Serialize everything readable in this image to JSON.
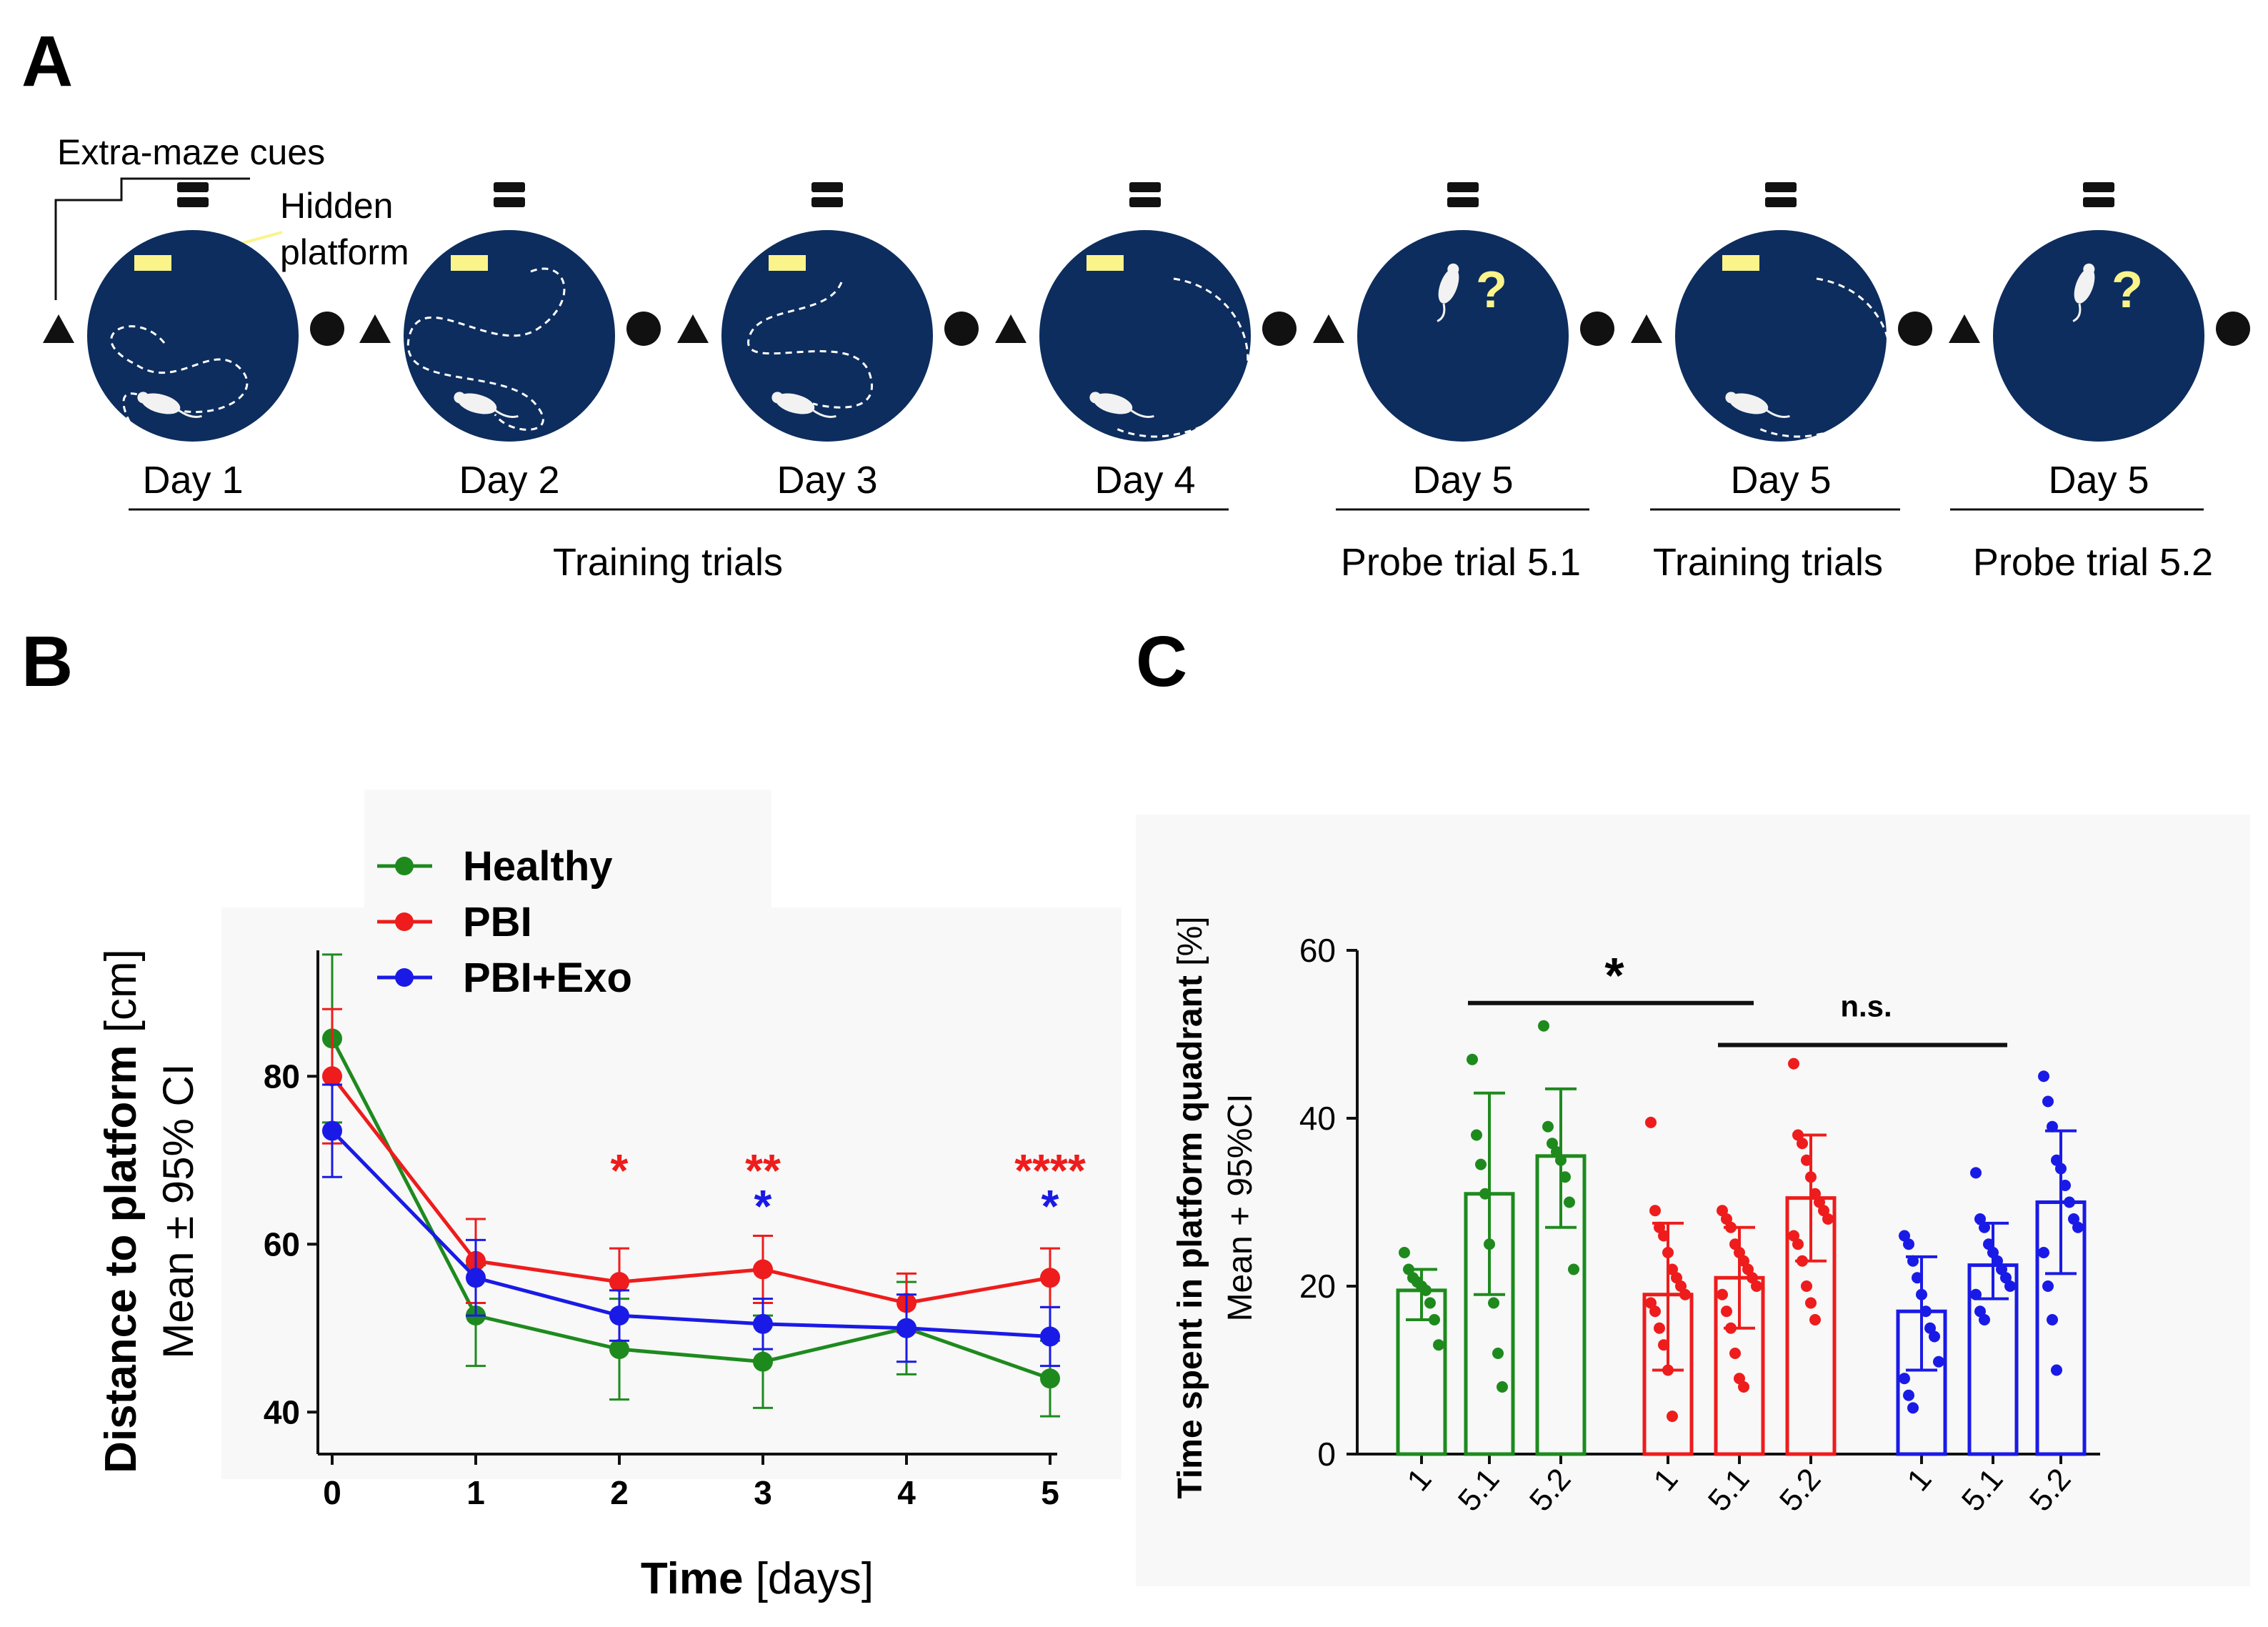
{
  "panel_labels": {
    "a": "A",
    "b": "B",
    "c": "C"
  },
  "colors": {
    "pool": "#0d2d5e",
    "platform": "#fbf48a",
    "healthy": "#1e8a1e",
    "pbi": "#ee1c1c",
    "pbi_exo": "#1a1ae6",
    "black": "#111111"
  },
  "panel_a": {
    "cues_label": "Extra-maze cues",
    "platform_label_1": "Hidden",
    "platform_label_2": "platform",
    "question_mark": "?",
    "days": [
      {
        "label": "Day 1",
        "icon": "pool-icon"
      },
      {
        "label": "Day 2",
        "icon": "pool-icon"
      },
      {
        "label": "Day 3",
        "icon": "pool-icon"
      },
      {
        "label": "Day 4",
        "icon": "pool-icon"
      },
      {
        "label": "Day 5",
        "icon": "pool-probe-icon"
      },
      {
        "label": "Day 5",
        "icon": "pool-icon"
      },
      {
        "label": "Day 5",
        "icon": "pool-probe-icon"
      }
    ],
    "groups": [
      "Training trials",
      "Probe trial 5.1",
      "Training trials",
      "Probe trial 5.2"
    ]
  },
  "chart_data": [
    {
      "type": "line",
      "panel": "B",
      "title": "",
      "xlabel": "Time",
      "xlabel_unit": "[days]",
      "ylabel": "Distance to platform",
      "ylabel_unit": "[cm]",
      "ylabel2": "Mean ± 95% CI",
      "x": [
        0,
        1,
        2,
        3,
        4,
        5
      ],
      "xticks": [
        "0",
        "1",
        "2",
        "3",
        "4",
        "5"
      ],
      "yticks": [
        "40",
        "60",
        "80"
      ],
      "xlim": [
        0,
        5
      ],
      "ylim": [
        35,
        95
      ],
      "legend": [
        "Healthy",
        "PBI",
        "PBI+Exo"
      ],
      "series": [
        {
          "name": "Healthy",
          "color": "#1e8a1e",
          "values": [
            84.5,
            51.5,
            47.5,
            46,
            50,
            44
          ],
          "err": [
            10,
            6,
            6,
            5.5,
            5.5,
            4.5
          ]
        },
        {
          "name": "PBI",
          "color": "#ee1c1c",
          "values": [
            80,
            58,
            55.5,
            57,
            53,
            56
          ],
          "err": [
            8,
            5,
            4,
            4,
            3.5,
            3.5
          ]
        },
        {
          "name": "PBI+Exo",
          "color": "#1a1ae6",
          "values": [
            73.5,
            56,
            51.5,
            50.5,
            50,
            49
          ],
          "err": [
            5.5,
            4.5,
            3,
            3,
            4,
            3.5
          ]
        }
      ],
      "annotations": [
        {
          "x": 2,
          "text": "*",
          "color": "#ee1c1c",
          "row": 1
        },
        {
          "x": 3,
          "text": "**",
          "color": "#ee1c1c",
          "row": 1
        },
        {
          "x": 3,
          "text": "*",
          "color": "#1a1ae6",
          "row": 2
        },
        {
          "x": 5,
          "text": "****",
          "color": "#ee1c1c",
          "row": 1
        },
        {
          "x": 5,
          "text": "*",
          "color": "#1a1ae6",
          "row": 2
        }
      ]
    },
    {
      "type": "bar",
      "panel": "C",
      "title": "",
      "ylabel": "Time spent in platform quadrant",
      "ylabel_unit": "[%]",
      "ylabel2": "Mean + 95%CI",
      "ylim": [
        0,
        60
      ],
      "yticks": [
        "0",
        "20",
        "40",
        "60"
      ],
      "categories": [
        "1",
        "5.1",
        "5.2",
        "1",
        "5.1",
        "5.2",
        "1",
        "5.1",
        "5.2"
      ],
      "groups": [
        "Healthy",
        "PBI",
        "PBI+Exo"
      ],
      "bars": [
        {
          "group": "Healthy",
          "label": "1",
          "value": 19.5,
          "lo": 16,
          "hi": 22,
          "points": [
            24,
            22,
            21,
            20.5,
            20,
            19.5,
            18,
            16,
            13
          ]
        },
        {
          "group": "Healthy",
          "label": "5.1",
          "value": 31,
          "lo": 19,
          "hi": 43,
          "points": [
            47,
            38,
            34.5,
            31,
            25,
            18,
            12,
            8
          ]
        },
        {
          "group": "Healthy",
          "label": "5.2",
          "value": 35.5,
          "lo": 27,
          "hi": 43.5,
          "points": [
            51,
            39,
            37,
            36,
            35,
            33,
            30,
            22
          ]
        },
        {
          "group": "PBI",
          "label": "1",
          "value": 19,
          "lo": 10,
          "hi": 27.5,
          "points": [
            39.5,
            29,
            27,
            26,
            24,
            22,
            21,
            20,
            19,
            18,
            17,
            15,
            13,
            10,
            4.5
          ]
        },
        {
          "group": "PBI",
          "label": "5.1",
          "value": 21,
          "lo": 15,
          "hi": 27,
          "points": [
            29,
            28,
            27,
            25,
            24,
            23,
            22,
            21,
            20,
            19,
            17,
            15,
            12,
            9,
            8
          ]
        },
        {
          "group": "PBI",
          "label": "5.2",
          "value": 30.5,
          "lo": 23,
          "hi": 38,
          "points": [
            46.5,
            38,
            37,
            35,
            33,
            31,
            30,
            29,
            28,
            26,
            25,
            23,
            20,
            18,
            16
          ]
        },
        {
          "group": "PBI+Exo",
          "label": "1",
          "value": 17,
          "lo": 10,
          "hi": 23.5,
          "points": [
            26,
            25,
            23,
            21,
            19,
            17,
            15,
            14,
            11,
            9,
            7,
            5.5
          ]
        },
        {
          "group": "PBI+Exo",
          "label": "5.1",
          "value": 22.5,
          "lo": 18.5,
          "hi": 27.5,
          "points": [
            33.5,
            28,
            27,
            25,
            24,
            23,
            22,
            21,
            20,
            19,
            17,
            16
          ]
        },
        {
          "group": "PBI+Exo",
          "label": "5.2",
          "value": 30,
          "lo": 21.5,
          "hi": 38.5,
          "points": [
            45,
            42,
            39,
            35,
            34,
            32,
            30,
            28,
            27,
            24,
            20,
            16,
            10
          ]
        }
      ],
      "significance": [
        {
          "from_bar": 1,
          "to_bar": 4,
          "text": "*",
          "level": 55
        },
        {
          "from_bar": 4,
          "to_bar": 7,
          "text": "n.s.",
          "level": 50
        }
      ]
    }
  ]
}
